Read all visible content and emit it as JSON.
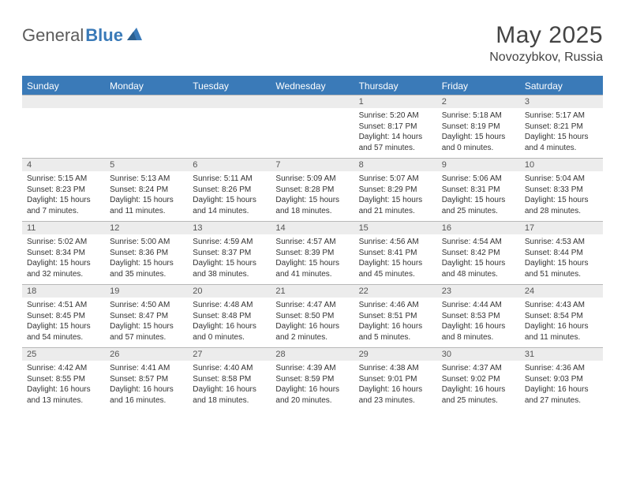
{
  "brand": {
    "part1": "General",
    "part2": "Blue"
  },
  "title": {
    "month": "May 2025",
    "location": "Novozybkov, Russia"
  },
  "colors": {
    "header_bg": "#3a7ab8",
    "header_text": "#ffffff",
    "daynum_bg": "#ececec",
    "text": "#333333",
    "border": "#b8b8b8"
  },
  "day_labels": [
    "Sunday",
    "Monday",
    "Tuesday",
    "Wednesday",
    "Thursday",
    "Friday",
    "Saturday"
  ],
  "weeks": [
    {
      "nums": [
        "",
        "",
        "",
        "",
        "1",
        "2",
        "3"
      ],
      "cells": [
        null,
        null,
        null,
        null,
        {
          "sunrise": "5:20 AM",
          "sunset": "8:17 PM",
          "daylight": "14 hours and 57 minutes."
        },
        {
          "sunrise": "5:18 AM",
          "sunset": "8:19 PM",
          "daylight": "15 hours and 0 minutes."
        },
        {
          "sunrise": "5:17 AM",
          "sunset": "8:21 PM",
          "daylight": "15 hours and 4 minutes."
        }
      ]
    },
    {
      "nums": [
        "4",
        "5",
        "6",
        "7",
        "8",
        "9",
        "10"
      ],
      "cells": [
        {
          "sunrise": "5:15 AM",
          "sunset": "8:23 PM",
          "daylight": "15 hours and 7 minutes."
        },
        {
          "sunrise": "5:13 AM",
          "sunset": "8:24 PM",
          "daylight": "15 hours and 11 minutes."
        },
        {
          "sunrise": "5:11 AM",
          "sunset": "8:26 PM",
          "daylight": "15 hours and 14 minutes."
        },
        {
          "sunrise": "5:09 AM",
          "sunset": "8:28 PM",
          "daylight": "15 hours and 18 minutes."
        },
        {
          "sunrise": "5:07 AM",
          "sunset": "8:29 PM",
          "daylight": "15 hours and 21 minutes."
        },
        {
          "sunrise": "5:06 AM",
          "sunset": "8:31 PM",
          "daylight": "15 hours and 25 minutes."
        },
        {
          "sunrise": "5:04 AM",
          "sunset": "8:33 PM",
          "daylight": "15 hours and 28 minutes."
        }
      ]
    },
    {
      "nums": [
        "11",
        "12",
        "13",
        "14",
        "15",
        "16",
        "17"
      ],
      "cells": [
        {
          "sunrise": "5:02 AM",
          "sunset": "8:34 PM",
          "daylight": "15 hours and 32 minutes."
        },
        {
          "sunrise": "5:00 AM",
          "sunset": "8:36 PM",
          "daylight": "15 hours and 35 minutes."
        },
        {
          "sunrise": "4:59 AM",
          "sunset": "8:37 PM",
          "daylight": "15 hours and 38 minutes."
        },
        {
          "sunrise": "4:57 AM",
          "sunset": "8:39 PM",
          "daylight": "15 hours and 41 minutes."
        },
        {
          "sunrise": "4:56 AM",
          "sunset": "8:41 PM",
          "daylight": "15 hours and 45 minutes."
        },
        {
          "sunrise": "4:54 AM",
          "sunset": "8:42 PM",
          "daylight": "15 hours and 48 minutes."
        },
        {
          "sunrise": "4:53 AM",
          "sunset": "8:44 PM",
          "daylight": "15 hours and 51 minutes."
        }
      ]
    },
    {
      "nums": [
        "18",
        "19",
        "20",
        "21",
        "22",
        "23",
        "24"
      ],
      "cells": [
        {
          "sunrise": "4:51 AM",
          "sunset": "8:45 PM",
          "daylight": "15 hours and 54 minutes."
        },
        {
          "sunrise": "4:50 AM",
          "sunset": "8:47 PM",
          "daylight": "15 hours and 57 minutes."
        },
        {
          "sunrise": "4:48 AM",
          "sunset": "8:48 PM",
          "daylight": "16 hours and 0 minutes."
        },
        {
          "sunrise": "4:47 AM",
          "sunset": "8:50 PM",
          "daylight": "16 hours and 2 minutes."
        },
        {
          "sunrise": "4:46 AM",
          "sunset": "8:51 PM",
          "daylight": "16 hours and 5 minutes."
        },
        {
          "sunrise": "4:44 AM",
          "sunset": "8:53 PM",
          "daylight": "16 hours and 8 minutes."
        },
        {
          "sunrise": "4:43 AM",
          "sunset": "8:54 PM",
          "daylight": "16 hours and 11 minutes."
        }
      ]
    },
    {
      "nums": [
        "25",
        "26",
        "27",
        "28",
        "29",
        "30",
        "31"
      ],
      "cells": [
        {
          "sunrise": "4:42 AM",
          "sunset": "8:55 PM",
          "daylight": "16 hours and 13 minutes."
        },
        {
          "sunrise": "4:41 AM",
          "sunset": "8:57 PM",
          "daylight": "16 hours and 16 minutes."
        },
        {
          "sunrise": "4:40 AM",
          "sunset": "8:58 PM",
          "daylight": "16 hours and 18 minutes."
        },
        {
          "sunrise": "4:39 AM",
          "sunset": "8:59 PM",
          "daylight": "16 hours and 20 minutes."
        },
        {
          "sunrise": "4:38 AM",
          "sunset": "9:01 PM",
          "daylight": "16 hours and 23 minutes."
        },
        {
          "sunrise": "4:37 AM",
          "sunset": "9:02 PM",
          "daylight": "16 hours and 25 minutes."
        },
        {
          "sunrise": "4:36 AM",
          "sunset": "9:03 PM",
          "daylight": "16 hours and 27 minutes."
        }
      ]
    }
  ],
  "labels": {
    "sunrise": "Sunrise:",
    "sunset": "Sunset:",
    "daylight": "Daylight:"
  }
}
